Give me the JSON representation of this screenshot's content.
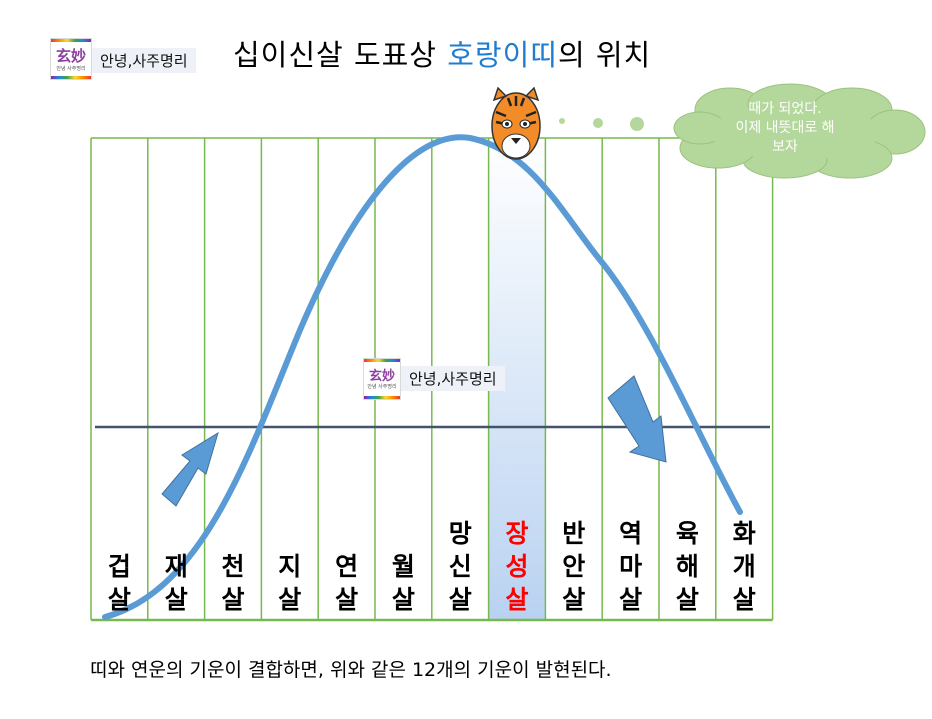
{
  "header": {
    "brand_label": "안녕,사주명리",
    "logo_hanja": "玄妙",
    "logo_sub": "안녕 사주명리",
    "title_prefix": "십이신살 도표상 ",
    "title_highlight": "호랑이띠",
    "title_suffix": "의 위치"
  },
  "diagram": {
    "columns": [
      "겁살",
      "재살",
      "천살",
      "지살",
      "연살",
      "월살",
      "망신살",
      "장성살",
      "반안살",
      "역마살",
      "육해살",
      "화개살"
    ],
    "highlight_index": 7,
    "watermark_label": "안녕,사주명리",
    "speech_lines": [
      "때가 되었다.",
      "이제 내뜻대로 해",
      "보자"
    ],
    "mascot_icon": "tiger-face-icon"
  },
  "colors": {
    "grid_green": "#77b84f",
    "curve_blue": "#5b9bd5",
    "highlight_blue": "#b9d2f1",
    "highlight_text": "#ff0000",
    "midline": "#44546a",
    "cloud": "#b4d79b",
    "title_accent": "#1f7dd1"
  },
  "footer": {
    "caption": "띠와 연운의 기운이 결합하면, 위와 같은 12개의 기운이 발현된다."
  }
}
